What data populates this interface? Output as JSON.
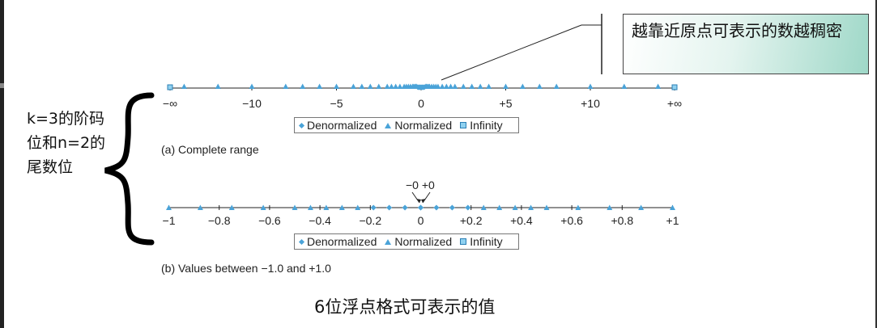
{
  "callout": {
    "text": "越靠近原点可表示的数越稠密"
  },
  "brace_label": {
    "text": "k=3的阶码位和n=2的尾数位"
  },
  "caption": {
    "text": "6位浮点格式可表示的值"
  },
  "colors": {
    "marker": "#4aa3d8",
    "infinity_fill": "#8fd1f0",
    "axis": "#222222"
  },
  "chart_data": [
    {
      "type": "scatter",
      "label": "(a) Complete range",
      "tick_labels": [
        "−∞",
        "−10",
        "−5",
        "0",
        "+5",
        "+10",
        "+∞"
      ],
      "legend": [
        "Denormalized",
        "Normalized",
        "Infinity"
      ],
      "series": [
        {
          "name": "Denormalized",
          "values": [
            -0.1875,
            -0.125,
            -0.0625,
            0,
            0,
            0.0625,
            0.125,
            0.1875
          ]
        },
        {
          "name": "Normalized",
          "values": [
            -14,
            -12,
            -10,
            -8,
            -7,
            -6,
            -5,
            -4,
            -3.5,
            -3,
            -2.5,
            -2,
            -1.75,
            -1.5,
            -1.25,
            -1,
            -0.875,
            -0.75,
            -0.625,
            -0.5,
            -0.4375,
            -0.375,
            -0.3125,
            -0.25,
            0.25,
            0.3125,
            0.375,
            0.4375,
            0.5,
            0.625,
            0.75,
            0.875,
            1,
            1.25,
            1.5,
            1.75,
            2,
            2.5,
            3,
            3.5,
            4,
            5,
            6,
            7,
            8,
            10,
            12,
            14
          ]
        },
        {
          "name": "Infinity",
          "values": [
            "-inf",
            "+inf"
          ]
        }
      ]
    },
    {
      "type": "scatter",
      "label": "(b) Values between −1.0 and +1.0",
      "annotation": "−0  +0",
      "tick_labels": [
        "−1",
        "−0.8",
        "−0.6",
        "−0.4",
        "−0.2",
        "0",
        "+0.2",
        "+0.4",
        "+0.6",
        "+0.8",
        "+1"
      ],
      "legend": [
        "Denormalized",
        "Normalized",
        "Infinity"
      ],
      "series": [
        {
          "name": "Denormalized",
          "values": [
            -0.1875,
            -0.125,
            -0.0625,
            0,
            0,
            0.0625,
            0.125,
            0.1875
          ]
        },
        {
          "name": "Normalized",
          "values": [
            -1,
            -0.875,
            -0.75,
            -0.625,
            -0.5,
            -0.4375,
            -0.375,
            -0.3125,
            -0.25,
            0.25,
            0.3125,
            0.375,
            0.4375,
            0.5,
            0.625,
            0.75,
            0.875,
            1
          ]
        }
      ]
    }
  ]
}
